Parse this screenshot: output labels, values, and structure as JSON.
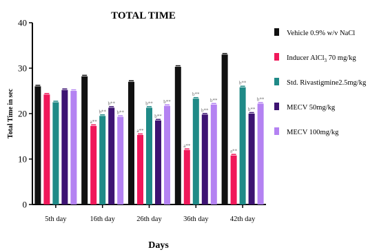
{
  "chart_data": {
    "type": "bar",
    "title": "TOTAL TIME",
    "xlabel": "Days",
    "ylabel": "Total Time in sec",
    "ylim": [
      0,
      40
    ],
    "yticks": [
      0,
      10,
      20,
      30,
      40
    ],
    "categories": [
      "5th day",
      "16th day",
      "26th day",
      "36th day",
      "42th day"
    ],
    "legend_position": "right",
    "series": [
      {
        "name": "Vehicle 0.9% w/v NaCl",
        "color": "#111111",
        "values": [
          26.0,
          28.2,
          27.0,
          30.3,
          33.0
        ],
        "labels": [
          "",
          "",
          "",
          "",
          ""
        ]
      },
      {
        "name": "Inducer AlCl",
        "sub": "3",
        "name_rest": " 70 mg/kg",
        "color": "#f0185a",
        "values": [
          24.2,
          17.3,
          15.3,
          12.0,
          10.8
        ],
        "labels": [
          "",
          "a**",
          "a**",
          "a**",
          "a**"
        ]
      },
      {
        "name": "Std. Rivastigmine2.5mg/kg",
        "color": "#1f8a87",
        "values": [
          22.5,
          19.5,
          21.3,
          23.3,
          25.8
        ],
        "labels": [
          "",
          "b**",
          "b**",
          "b**",
          "b**"
        ]
      },
      {
        "name": "MECV 50mg/kg",
        "color": "#3d1372",
        "values": [
          25.2,
          21.3,
          18.5,
          19.8,
          20.0
        ],
        "labels": [
          "",
          "b**",
          "b**",
          "b**",
          "b**"
        ]
      },
      {
        "name": "MECV 100mg/kg",
        "color": "#b482f2",
        "values": [
          25.0,
          19.3,
          21.7,
          22.0,
          22.2
        ],
        "labels": [
          "",
          "b**",
          "b**",
          "b**",
          "b**"
        ]
      }
    ]
  }
}
